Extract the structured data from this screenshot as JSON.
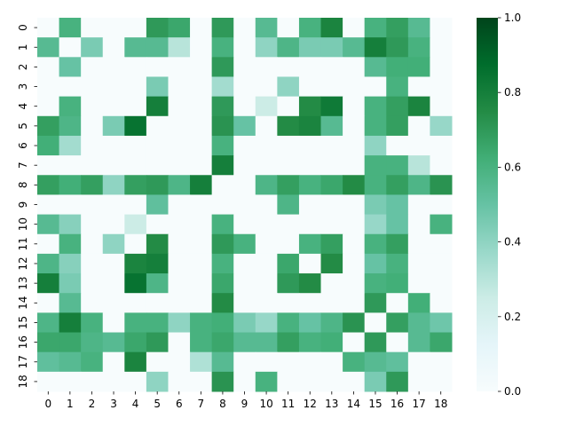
{
  "chart_data": {
    "type": "heatmap",
    "title": "",
    "xlabel": "",
    "ylabel": "",
    "x_categories": [
      "0",
      "1",
      "2",
      "3",
      "4",
      "5",
      "6",
      "7",
      "8",
      "9",
      "10",
      "11",
      "12",
      "13",
      "14",
      "15",
      "16",
      "17",
      "18"
    ],
    "y_categories": [
      "0",
      "1",
      "2",
      "3",
      "4",
      "5",
      "6",
      "7",
      "8",
      "9",
      "10",
      "11",
      "12",
      "13",
      "14",
      "15",
      "16",
      "17",
      "18"
    ],
    "value_range": [
      0,
      1
    ],
    "colormap": "BuGn",
    "colorbar": {
      "ticks": [
        0.0,
        0.2,
        0.4,
        0.6,
        0.8,
        1.0
      ],
      "tick_labels": [
        "0.0",
        "0.2",
        "0.4",
        "0.6",
        "0.8",
        "1.0"
      ]
    },
    "values": [
      [
        0,
        0.6,
        0,
        0,
        0,
        0.7,
        0.65,
        0,
        0.7,
        0,
        0.55,
        0,
        0.6,
        0.78,
        0,
        0.6,
        0.68,
        0.55,
        0
      ],
      [
        0.55,
        0,
        0.45,
        0,
        0.55,
        0.55,
        0.3,
        0,
        0.6,
        0,
        0.4,
        0.58,
        0.45,
        0.45,
        0.55,
        0.8,
        0.7,
        0.6,
        0
      ],
      [
        0,
        0.5,
        0,
        0,
        0,
        0,
        0,
        0,
        0.7,
        0,
        0,
        0,
        0,
        0,
        0,
        0.55,
        0.62,
        0.62,
        0
      ],
      [
        0,
        0,
        0,
        0,
        0,
        0.45,
        0,
        0,
        0.35,
        0,
        0,
        0.4,
        0,
        0,
        0,
        0,
        0.6,
        0,
        0
      ],
      [
        0,
        0.6,
        0,
        0,
        0,
        0.8,
        0,
        0,
        0.7,
        0,
        0.25,
        0,
        0.75,
        0.82,
        0,
        0.6,
        0.68,
        0.78,
        0
      ],
      [
        0.68,
        0.58,
        0,
        0.45,
        0.85,
        0,
        0,
        0,
        0.72,
        0.5,
        0,
        0.75,
        0.78,
        0.55,
        0,
        0.6,
        0.68,
        0,
        0.38
      ],
      [
        0.62,
        0.35,
        0,
        0,
        0,
        0,
        0,
        0,
        0.6,
        0,
        0,
        0,
        0,
        0,
        0,
        0.4,
        0,
        0,
        0
      ],
      [
        0,
        0,
        0,
        0,
        0,
        0,
        0,
        0,
        0.8,
        0,
        0,
        0,
        0,
        0,
        0,
        0.6,
        0.6,
        0.3,
        0
      ],
      [
        0.68,
        0.62,
        0.68,
        0.4,
        0.68,
        0.7,
        0.58,
        0.8,
        0,
        0,
        0.58,
        0.68,
        0.6,
        0.65,
        0.75,
        0.6,
        0.68,
        0.58,
        0.72
      ],
      [
        0,
        0,
        0,
        0,
        0,
        0.52,
        0,
        0,
        0,
        0,
        0,
        0.58,
        0,
        0,
        0,
        0.45,
        0.5,
        0,
        0
      ],
      [
        0.55,
        0.42,
        0,
        0,
        0.25,
        0,
        0,
        0,
        0.6,
        0,
        0,
        0,
        0,
        0,
        0,
        0.38,
        0.5,
        0,
        0.6
      ],
      [
        0,
        0.6,
        0,
        0.4,
        0,
        0.75,
        0,
        0,
        0.7,
        0.6,
        0,
        0,
        0.6,
        0.68,
        0,
        0.6,
        0.68,
        0,
        0
      ],
      [
        0.58,
        0.42,
        0,
        0,
        0.78,
        0.8,
        0,
        0,
        0.6,
        0,
        0,
        0.65,
        0,
        0.75,
        0,
        0.5,
        0.6,
        0,
        0
      ],
      [
        0.8,
        0.45,
        0,
        0,
        0.85,
        0.58,
        0,
        0,
        0.65,
        0,
        0,
        0.7,
        0.75,
        0,
        0,
        0.6,
        0.62,
        0,
        0
      ],
      [
        0,
        0.55,
        0,
        0,
        0,
        0,
        0,
        0,
        0.75,
        0,
        0,
        0,
        0,
        0,
        0,
        0.7,
        0,
        0.62,
        0
      ],
      [
        0.58,
        0.8,
        0.6,
        0,
        0.6,
        0.6,
        0.4,
        0.6,
        0.62,
        0.45,
        0.38,
        0.6,
        0.5,
        0.58,
        0.72,
        0,
        0.68,
        0.55,
        0.48
      ],
      [
        0.65,
        0.65,
        0.58,
        0.55,
        0.65,
        0.7,
        0,
        0.6,
        0.65,
        0.55,
        0.55,
        0.68,
        0.6,
        0.62,
        0,
        0.7,
        0,
        0.55,
        0.65
      ],
      [
        0.52,
        0.55,
        0.6,
        0,
        0.78,
        0,
        0,
        0.32,
        0.55,
        0,
        0,
        0,
        0,
        0,
        0.6,
        0.55,
        0.52,
        0,
        0
      ],
      [
        0,
        0,
        0,
        0,
        0,
        0.4,
        0,
        0,
        0.72,
        0,
        0.6,
        0,
        0,
        0,
        0,
        0.45,
        0.7,
        0,
        0
      ]
    ]
  }
}
